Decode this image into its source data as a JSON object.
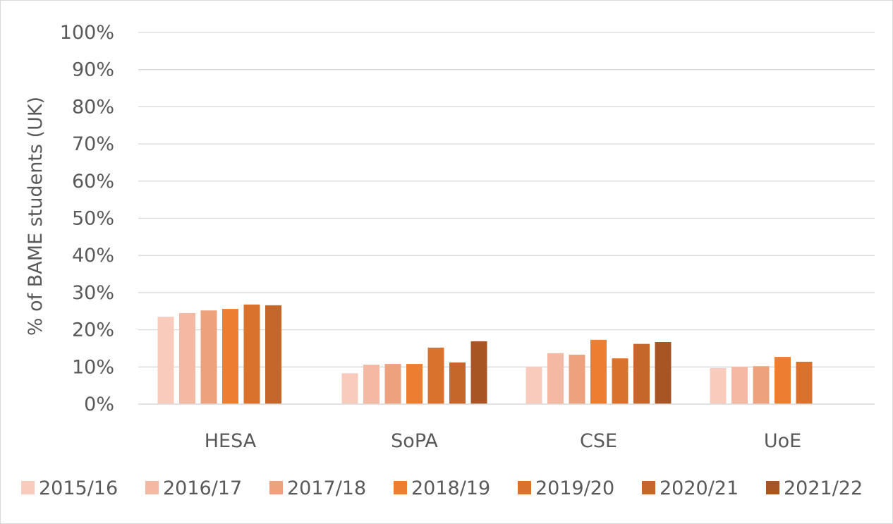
{
  "chart_data": {
    "type": "bar",
    "title": "",
    "xlabel": "",
    "ylabel": "% of BAME students (UK)",
    "ylim": [
      0,
      100
    ],
    "yticks": [
      "0%",
      "10%",
      "20%",
      "30%",
      "40%",
      "50%",
      "60%",
      "70%",
      "80%",
      "90%",
      "100%"
    ],
    "grid": true,
    "legend_position": "bottom",
    "categories": [
      "HESA",
      "SoPA",
      "CSE",
      "UoE"
    ],
    "series": [
      {
        "name": "2015/16",
        "color": "#f8cbbd",
        "values": [
          23.5,
          8.3,
          10.0,
          9.7
        ]
      },
      {
        "name": "2016/17",
        "color": "#f4b9a3",
        "values": [
          24.5,
          10.6,
          13.7,
          10.0
        ]
      },
      {
        "name": "2017/18",
        "color": "#eda17d",
        "values": [
          25.2,
          10.8,
          13.3,
          10.2
        ]
      },
      {
        "name": "2018/19",
        "color": "#ed7d31",
        "values": [
          25.6,
          10.8,
          17.3,
          12.7
        ]
      },
      {
        "name": "2019/20",
        "color": "#d9722c",
        "values": [
          26.8,
          15.2,
          12.3,
          11.4
        ]
      },
      {
        "name": "2020/21",
        "color": "#c5672a",
        "values": [
          26.6,
          11.2,
          16.2,
          null
        ]
      },
      {
        "name": "2021/22",
        "color": "#a85524",
        "values": [
          null,
          16.9,
          16.7,
          null
        ]
      }
    ]
  }
}
